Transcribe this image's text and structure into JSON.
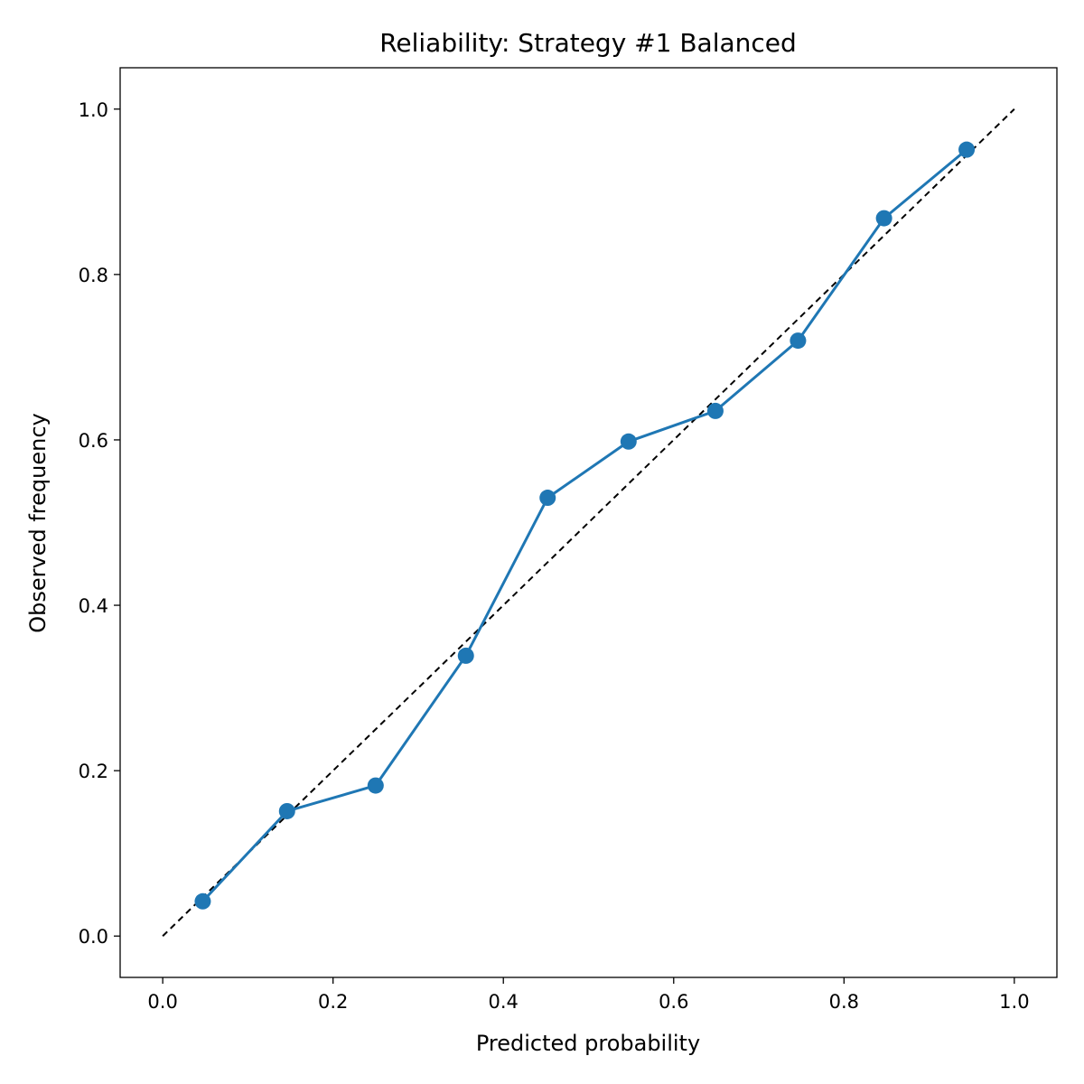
{
  "chart_data": {
    "type": "line",
    "title": "Reliability: Strategy #1 Balanced",
    "xlabel": "Predicted probability",
    "ylabel": "Observed frequency",
    "xlim": [
      -0.05,
      1.05
    ],
    "ylim": [
      -0.05,
      1.05
    ],
    "xticks": [
      "0.0",
      "0.2",
      "0.4",
      "0.6",
      "0.8",
      "1.0"
    ],
    "yticks": [
      "0.0",
      "0.2",
      "0.4",
      "0.6",
      "0.8",
      "1.0"
    ],
    "grid": false,
    "reference_line": {
      "style": "dashed",
      "color": "#000000",
      "x": [
        0,
        1
      ],
      "y": [
        0,
        1
      ]
    },
    "series": [
      {
        "color": "#1f77b4",
        "marker": "circle",
        "x": [
          0.047,
          0.146,
          0.25,
          0.356,
          0.452,
          0.547,
          0.649,
          0.746,
          0.847,
          0.944
        ],
        "y": [
          0.042,
          0.151,
          0.182,
          0.339,
          0.53,
          0.598,
          0.635,
          0.72,
          0.868,
          0.951
        ]
      }
    ]
  }
}
